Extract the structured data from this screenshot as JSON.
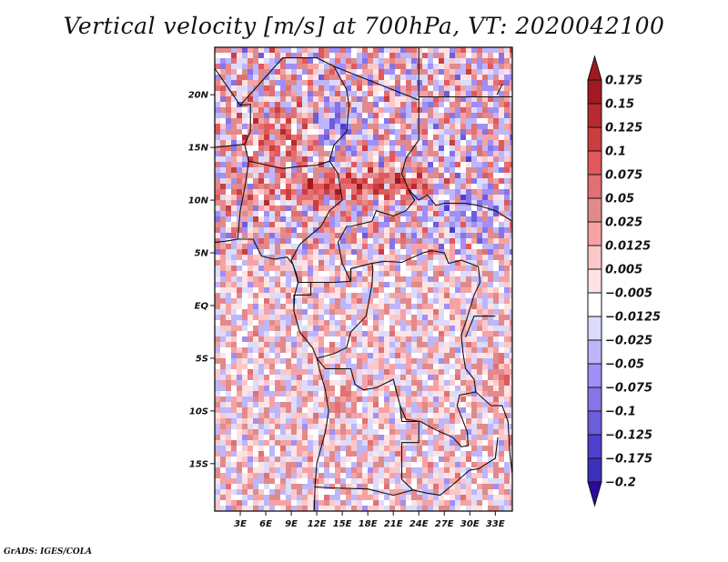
{
  "title": "Vertical velocity [m/s] at 700hPa, VT: 2020042100",
  "credit": "GrADS: IGES/COLA",
  "chart_data": {
    "type": "heatmap",
    "title": "Vertical velocity [m/s] at 700hPa, VT: 2020042100",
    "variable": "Vertical velocity",
    "units": "m/s",
    "level": "700hPa",
    "valid_time": "2020042100",
    "projection": "lat-lon",
    "xlim": [
      0,
      35
    ],
    "ylim": [
      -19.5,
      24.5
    ],
    "x_ticks": [
      {
        "value": 3,
        "label": "3E"
      },
      {
        "value": 6,
        "label": "6E"
      },
      {
        "value": 9,
        "label": "9E"
      },
      {
        "value": 12,
        "label": "12E"
      },
      {
        "value": 15,
        "label": "15E"
      },
      {
        "value": 18,
        "label": "18E"
      },
      {
        "value": 21,
        "label": "21E"
      },
      {
        "value": 24,
        "label": "24E"
      },
      {
        "value": 27,
        "label": "27E"
      },
      {
        "value": 30,
        "label": "30E"
      },
      {
        "value": 33,
        "label": "33E"
      }
    ],
    "y_ticks": [
      {
        "value": 20,
        "label": "20N"
      },
      {
        "value": 15,
        "label": "15N"
      },
      {
        "value": 10,
        "label": "10N"
      },
      {
        "value": 5,
        "label": "5N"
      },
      {
        "value": 0,
        "label": "EQ"
      },
      {
        "value": -5,
        "label": "5S"
      },
      {
        "value": -10,
        "label": "10S"
      },
      {
        "value": -15,
        "label": "15S"
      }
    ],
    "colorbar": {
      "orientation": "vertical",
      "position": "right",
      "extend": "both",
      "levels": [
        {
          "label": "0.175",
          "color": "#a11a22"
        },
        {
          "label": "0.15",
          "color": "#b82a2e"
        },
        {
          "label": "0.125",
          "color": "#cc3d3f"
        },
        {
          "label": "0.1",
          "color": "#e3585a"
        },
        {
          "label": "0.075",
          "color": "#e27073"
        },
        {
          "label": "0.05",
          "color": "#e18a8c"
        },
        {
          "label": "0.025",
          "color": "#f6a2a4"
        },
        {
          "label": "0.0125",
          "color": "#fac8c9"
        },
        {
          "label": "0.005",
          "color": "#fde3e4"
        },
        {
          "label": "-0.005",
          "color": "#ffffff"
        },
        {
          "label": "-0.0125",
          "color": "#dcdbfc"
        },
        {
          "label": "-0.025",
          "color": "#bdb6fa"
        },
        {
          "label": "-0.05",
          "color": "#9f8ff6"
        },
        {
          "label": "-0.075",
          "color": "#8674e8"
        },
        {
          "label": "-0.1",
          "color": "#6c5ddb"
        },
        {
          "label": "-0.125",
          "color": "#4d40cc"
        },
        {
          "label": "-0.175",
          "color": "#3c2fbb"
        },
        {
          "label": "-0.2",
          "color": "#2e21aa"
        }
      ],
      "top_arrow_color": "#a11a22",
      "bottom_arrow_color": "#2a0aa0",
      "bottom_last_box_color": "#2e21aa"
    },
    "features": {
      "strong_ascent_regions": [
        "Sahel band near 12N (Chad/Sudan)",
        "Niger/Mali ~17-22N",
        "Angola coast ~8-10S",
        "Lake Tanganyika / Malawi rift"
      ],
      "strong_descent_regions": [
        "Niger/Chad 15-18N",
        "Sudan ~13N"
      ]
    }
  }
}
